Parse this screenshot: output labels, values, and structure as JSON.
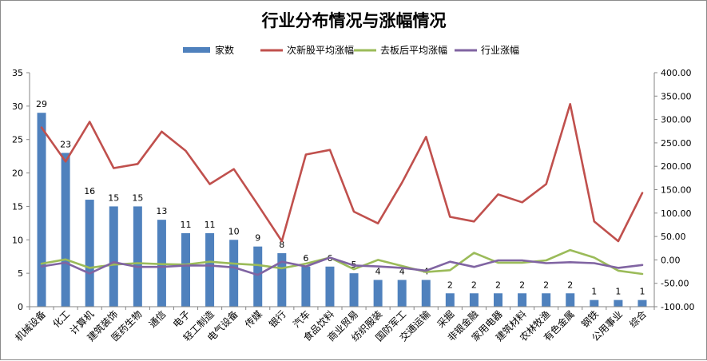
{
  "chart_data": {
    "type": "bar",
    "title": "行业分布情况与涨幅情况",
    "categories": [
      "机械设备",
      "化工",
      "计算机",
      "建筑装饰",
      "医药生物",
      "通信",
      "电子",
      "轻工制造",
      "电气设备",
      "传媒",
      "银行",
      "汽车",
      "食品饮料",
      "商业贸易",
      "纺织服装",
      "国防军工",
      "交通运输",
      "采掘",
      "非银金融",
      "家用电器",
      "建筑材料",
      "农林牧渔",
      "有色金属",
      "钢铁",
      "公用事业",
      "综合"
    ],
    "series": [
      {
        "name": "家数",
        "type": "bar",
        "axis": "left",
        "color": "#4f81bd",
        "values": [
          29,
          23,
          16,
          15,
          15,
          13,
          11,
          11,
          10,
          9,
          8,
          6,
          6,
          5,
          4,
          4,
          4,
          2,
          2,
          2,
          2,
          2,
          2,
          1,
          1,
          1
        ]
      },
      {
        "name": "次新股平均涨幅",
        "type": "line",
        "axis": "right",
        "color": "#c0504d",
        "values": [
          283,
          210,
          295,
          196,
          205,
          274,
          233,
          162,
          194,
          118,
          40,
          225,
          235,
          103,
          78,
          165,
          263,
          92,
          82,
          140,
          123,
          162,
          333,
          82,
          40,
          143
        ]
      },
      {
        "name": "去板后平均涨幅",
        "type": "line",
        "axis": "right",
        "color": "#9bbb59",
        "values": [
          -8,
          1,
          -17,
          -10,
          -7,
          -9,
          -10,
          -4,
          -8,
          -11,
          -18,
          -8,
          5,
          -20,
          0,
          -13,
          -26,
          -22,
          15,
          -6,
          -6,
          -1,
          21,
          5,
          -23,
          -30
        ]
      },
      {
        "name": "行业涨幅",
        "type": "line",
        "axis": "right",
        "color": "#8064a2",
        "values": [
          -14,
          -6,
          -29,
          -5,
          -15,
          -15,
          -12,
          -12,
          -16,
          -32,
          -4,
          -14,
          5,
          -12,
          -14,
          -17,
          -23,
          -4,
          -15,
          -1,
          -1,
          -7,
          -5,
          -7,
          -17,
          -11
        ]
      }
    ],
    "left_axis": {
      "min": 0,
      "max": 35,
      "step": 5,
      "ticks": [
        "0",
        "5",
        "10",
        "15",
        "20",
        "25",
        "30",
        "35"
      ]
    },
    "right_axis": {
      "min": -100,
      "max": 400,
      "step": 50,
      "ticks": [
        "-100.00",
        "-50.00",
        "0.00",
        "50.00",
        "100.00",
        "150.00",
        "200.00",
        "250.00",
        "300.00",
        "350.00",
        "400.00"
      ]
    },
    "bar_labels": [
      "29",
      "23",
      "16",
      "15",
      "15",
      "13",
      "11",
      "11",
      "10",
      "9",
      "8",
      "6",
      "6",
      "5",
      "4",
      "4",
      "4",
      "2",
      "2",
      "2",
      "2",
      "2",
      "2",
      "1",
      "1",
      "1"
    ],
    "grid": false,
    "legend_position": "top"
  }
}
